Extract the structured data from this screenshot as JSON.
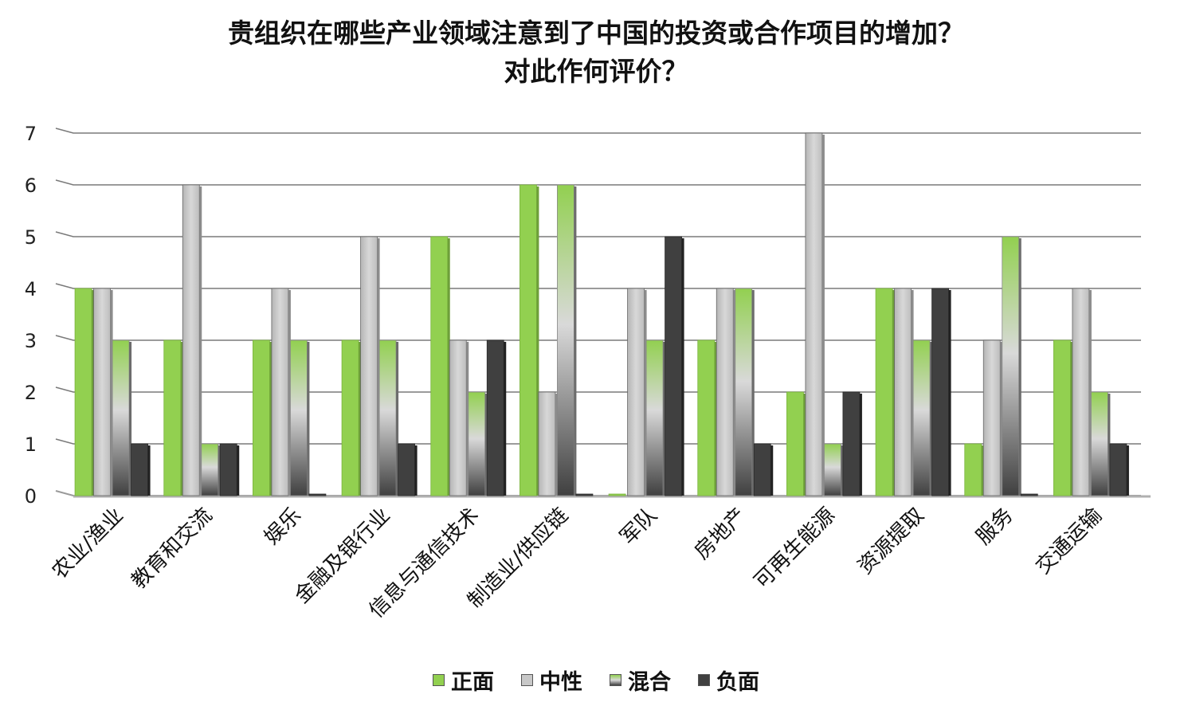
{
  "chart_data": {
    "type": "bar",
    "title_lines": [
      "贵组织在哪些产业领域注意到了中国的投资或合作项目的增加？",
      "对此作何评价？"
    ],
    "categories": [
      "农业/渔业",
      "教育和交流",
      "娱乐",
      "金融及银行业",
      "信息与通信技术",
      "制造业/供应链",
      "军队",
      "房地产",
      "可再生能源",
      "资源提取",
      "服务",
      "交通运输"
    ],
    "series": [
      {
        "name": "正面",
        "values": [
          4,
          3,
          3,
          3,
          5,
          6,
          0,
          3,
          2,
          4,
          1,
          3
        ],
        "color": "#92d050"
      },
      {
        "name": "中性",
        "values": [
          4,
          6,
          4,
          5,
          3,
          2,
          4,
          4,
          7,
          4,
          3,
          4
        ],
        "color": "#c8c8c8"
      },
      {
        "name": "混合",
        "values": [
          3,
          1,
          3,
          3,
          2,
          6,
          3,
          4,
          1,
          3,
          5,
          2
        ],
        "color": "#92d050"
      },
      {
        "name": "负面",
        "values": [
          1,
          1,
          0,
          1,
          3,
          0,
          5,
          1,
          2,
          4,
          0,
          1
        ],
        "color": "#404040"
      }
    ],
    "yticks": [
      "0",
      "1",
      "2",
      "3",
      "4",
      "5",
      "6",
      "7"
    ],
    "ylim": [
      0,
      7
    ],
    "grid": true,
    "legend_position": "bottom",
    "xlabel": "",
    "ylabel": ""
  },
  "legend": {
    "items": [
      {
        "label": "正面",
        "swatch_color": "#92d050"
      },
      {
        "label": "中性",
        "swatch_color": "#c8c8c8"
      },
      {
        "label": "混合",
        "swatch_color": "#92d050"
      },
      {
        "label": "负面",
        "swatch_color": "#404040"
      }
    ]
  }
}
